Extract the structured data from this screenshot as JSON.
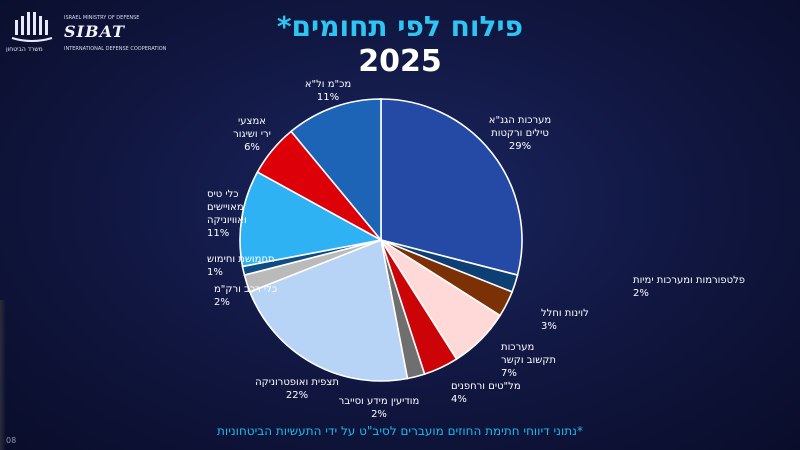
{
  "logo": {
    "brand": "SIBAT",
    "line1": "ISRAEL MINISTRY OF DEFENSE",
    "line2": "INTERNATIONAL DEFENSE COOPERATION",
    "hebrew": "משרד הביטחון"
  },
  "slide_number": "08",
  "footnote": "*נתוני דיווחי חתימת החוזים מועברים לסיב\"ט על ידי התעשיות הביטחוניות",
  "chart_data": {
    "type": "pie",
    "title": "פילוח לפי תחומים*",
    "subtitle": "2025",
    "slices": [
      {
        "label": [
          "מערכות הגנ\"א",
          "טילים ורקטות"
        ],
        "value": 29,
        "value_label": "29%",
        "color": "#244aa6"
      },
      {
        "label": [
          "פלטפורמות ומערכות ימיות"
        ],
        "value": 2,
        "value_label": "2%",
        "color": "#0d3f74"
      },
      {
        "label": [
          "לוינות וחלל"
        ],
        "value": 3,
        "value_label": "3%",
        "color": "#7c3006"
      },
      {
        "label": [
          "מערכות",
          "תקשוב וקשר"
        ],
        "value": 7,
        "value_label": "7%",
        "color": "#ffd8d8"
      },
      {
        "label": [
          "מל\"טים ורחפנים"
        ],
        "value": 4,
        "value_label": "4%",
        "color": "#cc0408"
      },
      {
        "label": [
          "מודיעין מידע וסייבר"
        ],
        "value": 2,
        "value_label": "2%",
        "color": "#6f6f6f"
      },
      {
        "label": [
          "תצפית ואופטרוניקה"
        ],
        "value": 22,
        "value_label": "22%",
        "color": "#b7d3f5"
      },
      {
        "label": [
          "כלי רכב ורק\"מ"
        ],
        "value": 2,
        "value_label": "2%",
        "color": "#bababa"
      },
      {
        "label": [
          "תחמושת וחימוש"
        ],
        "value": 1,
        "value_label": "1%",
        "color": "#0e4c86"
      },
      {
        "label": [
          "כלי טיס",
          "מאויישים",
          "ואוויוניקה"
        ],
        "value": 11,
        "value_label": "11%",
        "color": "#2fb2f4"
      },
      {
        "label": [
          "אמצעי",
          "ירי ושיגור"
        ],
        "value": 6,
        "value_label": "6%",
        "color": "#dd0009"
      },
      {
        "label": [
          "מכ\"מ ול\"א"
        ],
        "value": 11,
        "value_label": "11%",
        "color": "#1d63b6"
      }
    ]
  }
}
